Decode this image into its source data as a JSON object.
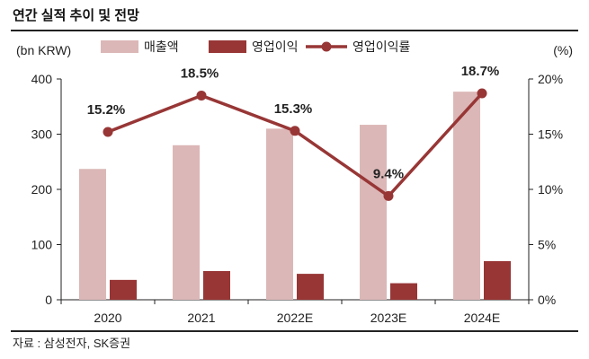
{
  "header": {
    "title": "연간 실적 추이 및 전망"
  },
  "footer": {
    "source": "자료 : 삼성전자, SK증권"
  },
  "chart_data": {
    "type": "bar",
    "categories": [
      "2020",
      "2021",
      "2022E",
      "2023E",
      "2024E"
    ],
    "series": [
      {
        "name": "매출액",
        "type": "bar",
        "axis": "left",
        "color": "#dcb7b7",
        "values": [
          237,
          280,
          310,
          317,
          377
        ]
      },
      {
        "name": "영업이익",
        "type": "bar",
        "axis": "left",
        "color": "#983636",
        "values": [
          36,
          52,
          47,
          30,
          70
        ]
      },
      {
        "name": "영업이익률",
        "type": "line",
        "axis": "right",
        "color": "#983636",
        "values": [
          15.2,
          18.5,
          15.3,
          9.4,
          18.7
        ],
        "labels": [
          "15.2%",
          "18.5%",
          "15.3%",
          "9.4%",
          "18.7%"
        ]
      }
    ],
    "y_left": {
      "unit": "(bn KRW)",
      "ylim": [
        0,
        400
      ],
      "ticks": [
        "400",
        "300",
        "200",
        "100",
        "0"
      ]
    },
    "y_right": {
      "unit": "(%)",
      "ylim": [
        0,
        20
      ],
      "ticks": [
        "20%",
        "15%",
        "10%",
        "5%",
        "0%"
      ]
    },
    "legend_position": "top",
    "grid": false
  }
}
